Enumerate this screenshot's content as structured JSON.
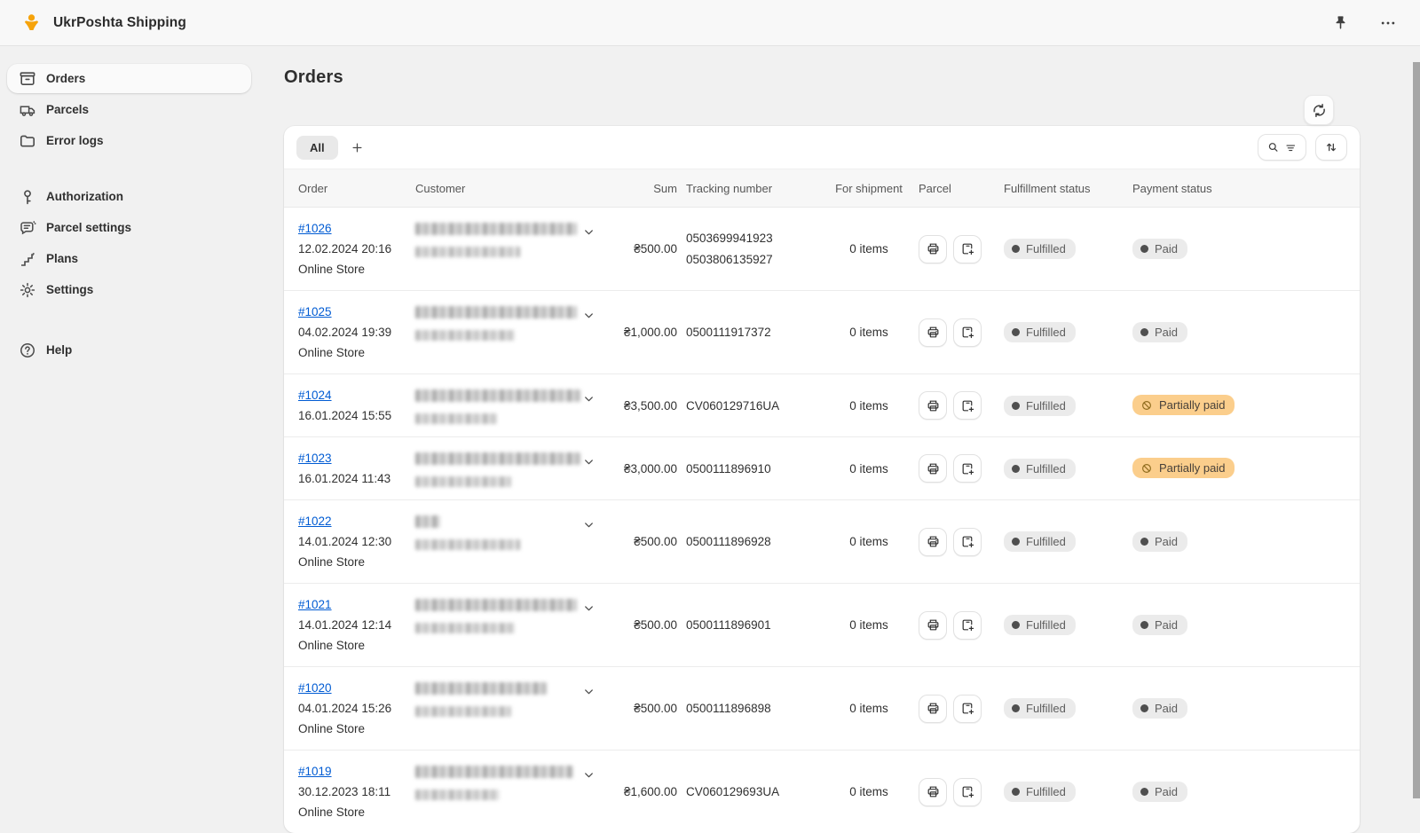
{
  "app": {
    "title": "UkrPoshta Shipping"
  },
  "sidebar": {
    "groups": [
      {
        "items": [
          {
            "label": "Orders"
          },
          {
            "label": "Parcels"
          },
          {
            "label": "Error logs"
          }
        ]
      },
      {
        "items": [
          {
            "label": "Authorization"
          },
          {
            "label": "Parcel settings"
          },
          {
            "label": "Plans"
          },
          {
            "label": "Settings"
          }
        ]
      },
      {
        "items": [
          {
            "label": "Help"
          }
        ]
      }
    ]
  },
  "page": {
    "title": "Orders"
  },
  "tabs": {
    "all_label": "All"
  },
  "colors": {
    "link": "#005BD3",
    "badge_warning_bg": "#fbce8c",
    "badge_gray_bg": "#ebebeb",
    "logo_yellow": "#F6A30B"
  },
  "table": {
    "columns": [
      "Order",
      "Customer",
      "Sum",
      "Tracking number",
      "For shipment",
      "Parcel",
      "Fulfillment status",
      "Payment status"
    ],
    "rows": [
      {
        "order": "#1026",
        "date": "12.02.2024 20:16",
        "source": "Online Store",
        "sum": "₴500.00",
        "tracking": [
          "0503699941923",
          "0503806135927"
        ],
        "shipment": "0 items",
        "fulfillment": "Fulfilled",
        "payment": "Paid",
        "payment_kind": "paid",
        "name_w": 182,
        "addr_w": 118
      },
      {
        "order": "#1025",
        "date": "04.02.2024 19:39",
        "source": "Online Store",
        "sum": "₴1,000.00",
        "tracking": [
          "0500111917372"
        ],
        "shipment": "0 items",
        "fulfillment": "Fulfilled",
        "payment": "Paid",
        "payment_kind": "paid",
        "name_w": 182,
        "addr_w": 112
      },
      {
        "order": "#1024",
        "date": "16.01.2024 15:55",
        "source": null,
        "sum": "₴3,500.00",
        "tracking": [
          "CV060129716UA"
        ],
        "shipment": "0 items",
        "fulfillment": "Fulfilled",
        "payment": "Partially paid",
        "payment_kind": "warning",
        "name_w": 186,
        "addr_w": 92
      },
      {
        "order": "#1023",
        "date": "16.01.2024 11:43",
        "source": null,
        "sum": "₴3,000.00",
        "tracking": [
          "0500111896910"
        ],
        "shipment": "0 items",
        "fulfillment": "Fulfilled",
        "payment": "Partially paid",
        "payment_kind": "warning",
        "name_w": 186,
        "addr_w": 108
      },
      {
        "order": "#1022",
        "date": "14.01.2024 12:30",
        "source": "Online Store",
        "sum": "₴500.00",
        "tracking": [
          "0500111896928"
        ],
        "shipment": "0 items",
        "fulfillment": "Fulfilled",
        "payment": "Paid",
        "payment_kind": "paid",
        "name_w": 28,
        "addr_w": 118
      },
      {
        "order": "#1021",
        "date": "14.01.2024 12:14",
        "source": "Online Store",
        "sum": "₴500.00",
        "tracking": [
          "0500111896901"
        ],
        "shipment": "0 items",
        "fulfillment": "Fulfilled",
        "payment": "Paid",
        "payment_kind": "paid",
        "name_w": 182,
        "addr_w": 112
      },
      {
        "order": "#1020",
        "date": "04.01.2024 15:26",
        "source": "Online Store",
        "sum": "₴500.00",
        "tracking": [
          "0500111896898"
        ],
        "shipment": "0 items",
        "fulfillment": "Fulfilled",
        "payment": "Paid",
        "payment_kind": "paid",
        "name_w": 148,
        "addr_w": 108
      },
      {
        "order": "#1019",
        "date": "30.12.2023 18:11",
        "source": "Online Store",
        "sum": "₴1,600.00",
        "tracking": [
          "CV060129693UA"
        ],
        "shipment": "0 items",
        "fulfillment": "Fulfilled",
        "payment": "Paid",
        "payment_kind": "paid",
        "name_w": 178,
        "addr_w": 95
      }
    ]
  }
}
